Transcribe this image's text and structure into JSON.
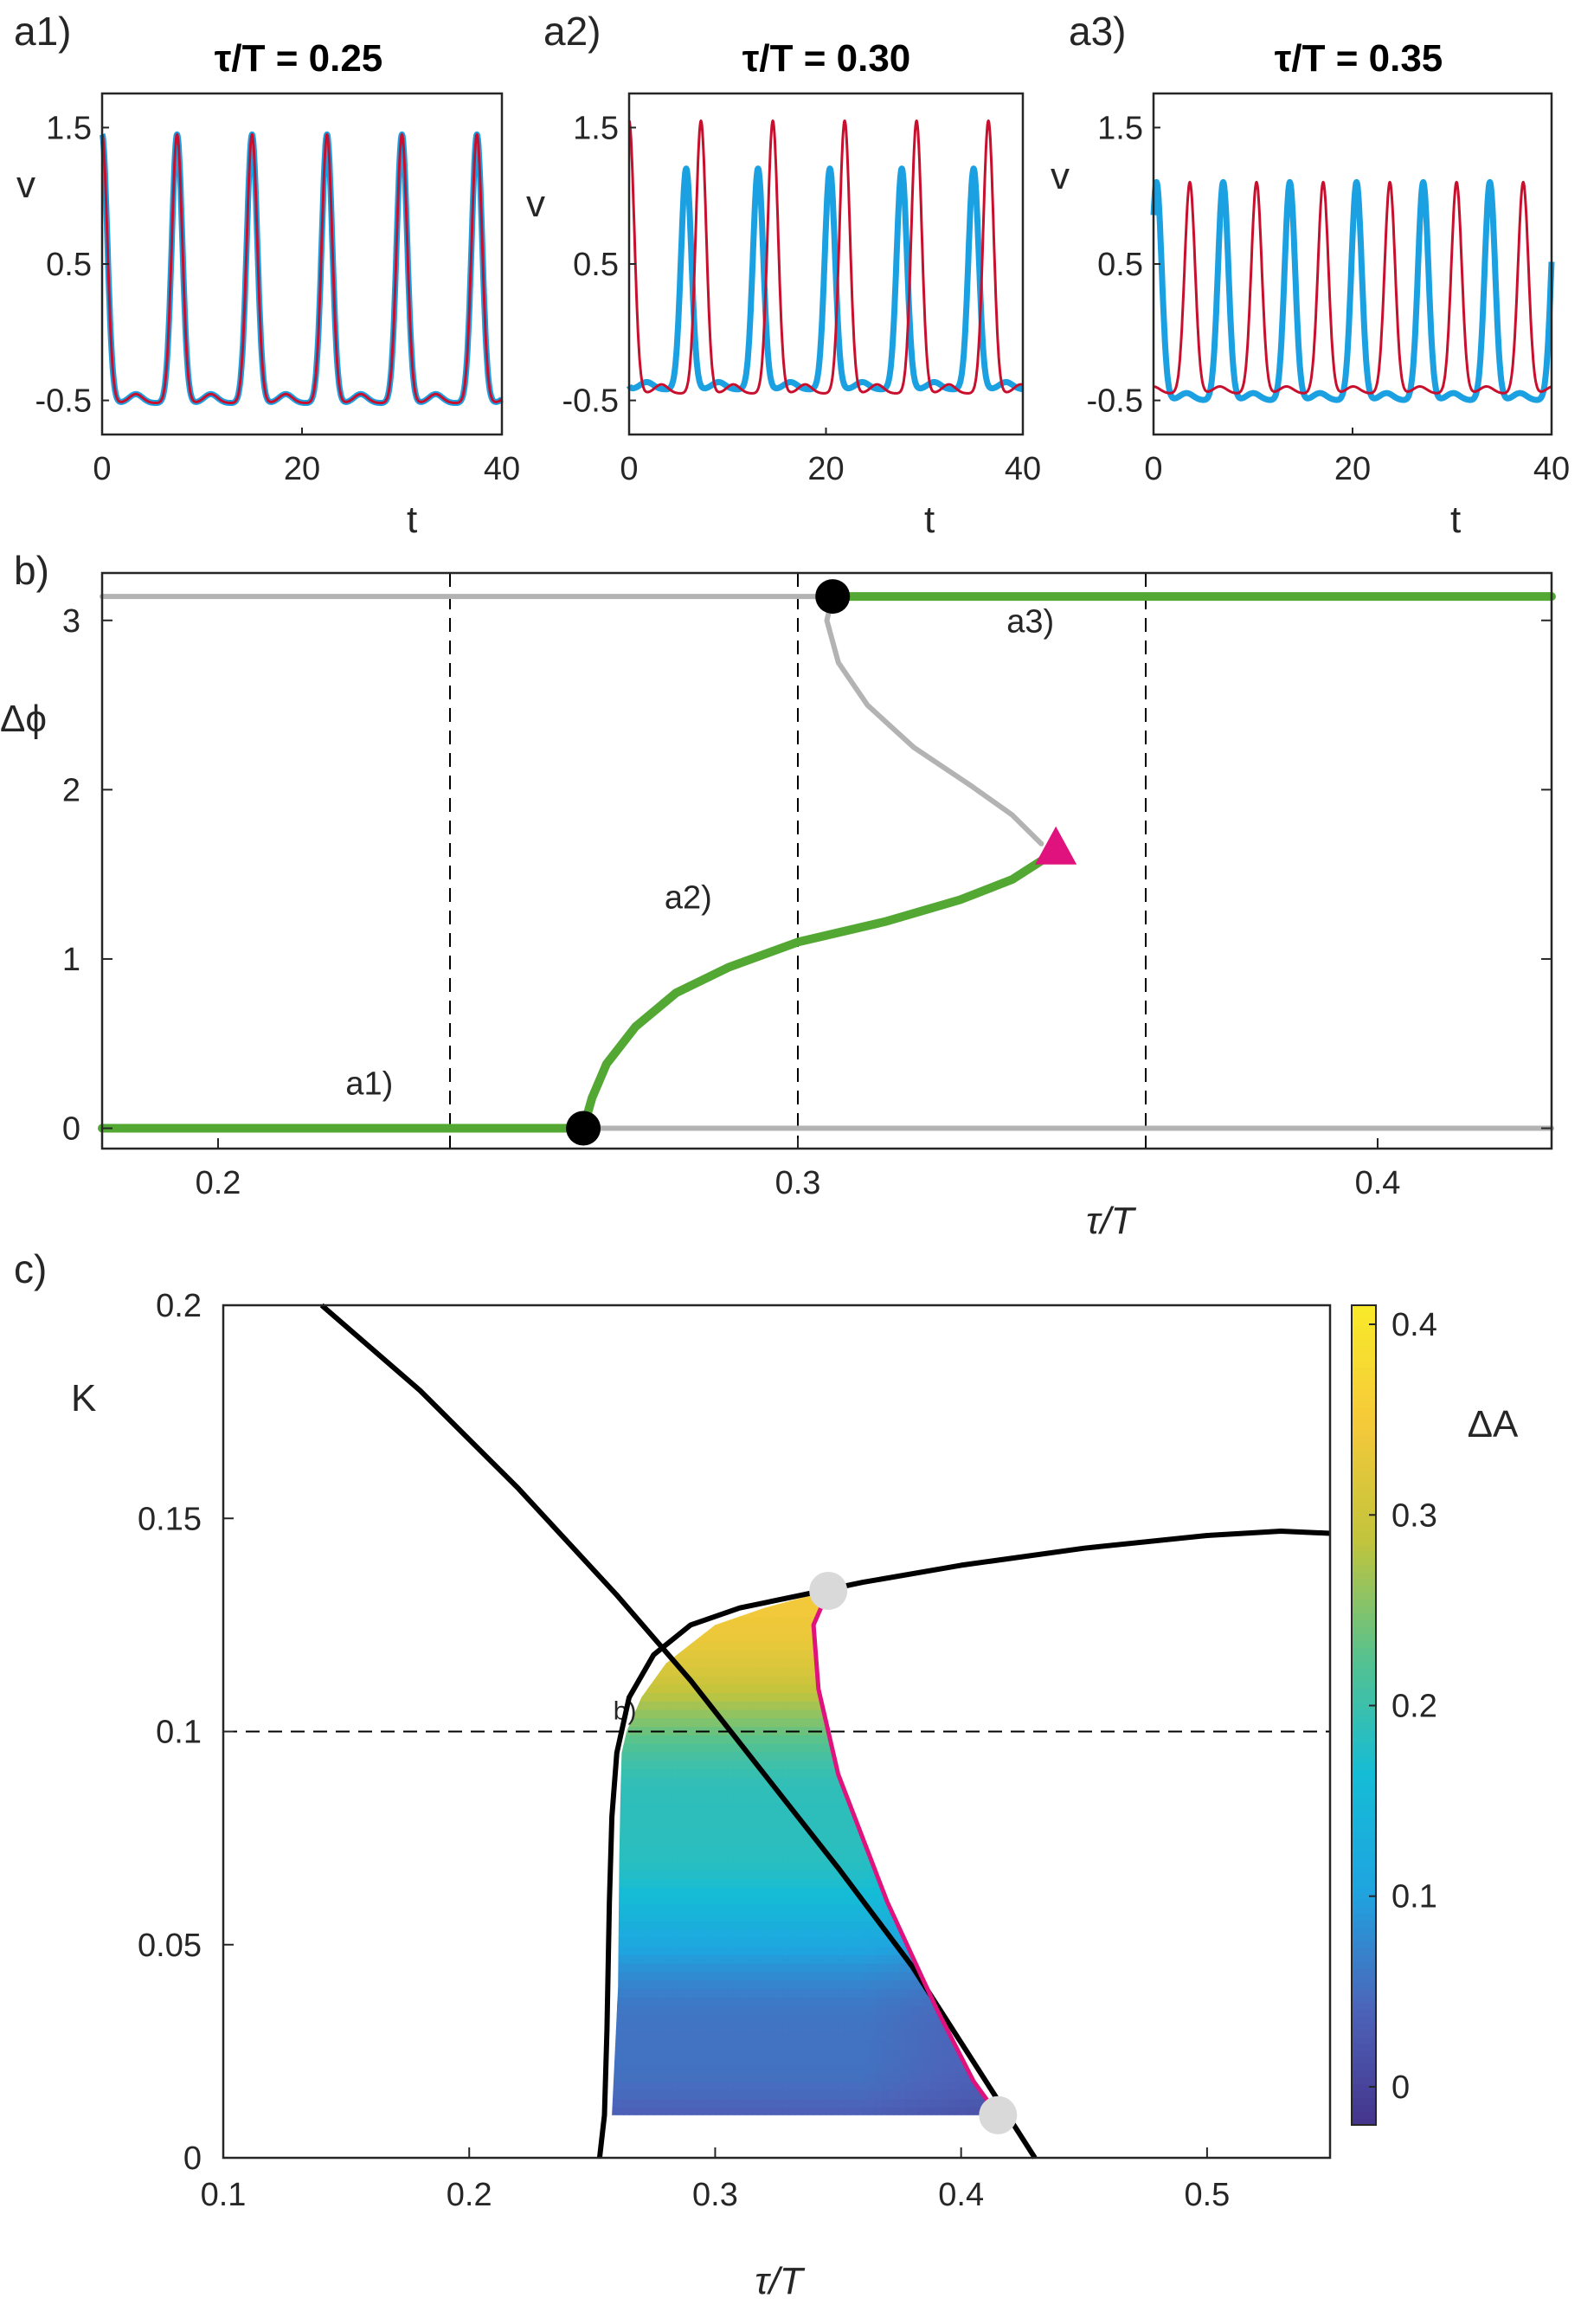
{
  "chart_data": [
    {
      "id": "a1",
      "type": "line",
      "panel_label": "a1)",
      "title": "τ/T = 0.25",
      "xlabel": "t",
      "ylabel": "v",
      "xlim": [
        0,
        40
      ],
      "ylim": [
        -0.75,
        1.75
      ],
      "xticks": [
        "0",
        "20",
        "40"
      ],
      "yticks": [
        "1.5",
        "0.5",
        "-0.5"
      ],
      "series": [
        {
          "color": "#1ba1e2",
          "period": 7.5,
          "phase": 0.0,
          "peak": 1.45,
          "trough": -0.52
        },
        {
          "color": "#c8102e",
          "period": 7.5,
          "phase": 0.0,
          "peak": 1.45,
          "trough": -0.52
        }
      ]
    },
    {
      "id": "a2",
      "type": "line",
      "panel_label": "a2)",
      "title": "τ/T = 0.30",
      "xlabel": "t",
      "ylabel": "v",
      "xlim": [
        0,
        40
      ],
      "ylim": [
        -0.75,
        1.75
      ],
      "xticks": [
        "0",
        "20",
        "40"
      ],
      "yticks": [
        "1.5",
        "0.5",
        "-0.5"
      ],
      "series": [
        {
          "color": "#1ba1e2",
          "period": 7.3,
          "phase": 5.8,
          "peak": 1.2,
          "trough": -0.42
        },
        {
          "color": "#c8102e",
          "period": 7.3,
          "phase": 0.0,
          "peak": 1.55,
          "trough": -0.45
        }
      ]
    },
    {
      "id": "a3",
      "type": "line",
      "panel_label": "a3)",
      "title": "τ/T = 0.35",
      "xlabel": "t",
      "ylabel": "v",
      "xlim": [
        0,
        40
      ],
      "ylim": [
        -0.75,
        1.75
      ],
      "xticks": [
        "0",
        "20",
        "40"
      ],
      "yticks": [
        "1.5",
        "0.5",
        "-0.5"
      ],
      "series": [
        {
          "color": "#1ba1e2",
          "period": 6.7,
          "phase": 0.3,
          "peak": 1.1,
          "trough": -0.5
        },
        {
          "color": "#c8102e",
          "period": 6.7,
          "phase": 3.65,
          "peak": 1.1,
          "trough": -0.45
        }
      ]
    },
    {
      "id": "b",
      "type": "line",
      "panel_label": "b)",
      "xlabel": "τ/T",
      "ylabel": "Δϕ",
      "xlim": [
        0.18,
        0.43
      ],
      "ylim": [
        -0.12,
        3.28
      ],
      "xticks": [
        "0.2",
        "0.3",
        "0.4"
      ],
      "xtick_values": [
        0.2,
        0.3,
        0.4
      ],
      "yticks": [
        "0",
        "1",
        "2",
        "3"
      ],
      "ytick_values": [
        0,
        1,
        2,
        3
      ],
      "vlines": [
        0.24,
        0.3,
        0.36
      ],
      "annotations": [
        {
          "text": "a1)",
          "x": 0.222,
          "y": 0.2
        },
        {
          "text": "a2)",
          "x": 0.277,
          "y": 1.3
        },
        {
          "text": "a3)",
          "x": 0.336,
          "y": 2.93
        }
      ],
      "series": [
        {
          "kind": "stable",
          "color": "#52a832",
          "x": [
            0.18,
            0.263
          ],
          "y": [
            0,
            0
          ]
        },
        {
          "kind": "unstable",
          "color": "#b3b3b3",
          "x": [
            0.263,
            0.43
          ],
          "y": [
            0,
            0
          ]
        },
        {
          "kind": "unstable",
          "color": "#b3b3b3",
          "x": [
            0.18,
            0.306
          ],
          "y": [
            3.1416,
            3.1416
          ]
        },
        {
          "kind": "stable",
          "color": "#52a832",
          "x": [
            0.306,
            0.43
          ],
          "y": [
            3.1416,
            3.1416
          ]
        },
        {
          "kind": "stable",
          "color": "#52a832",
          "x": [
            0.263,
            0.2645,
            0.267,
            0.272,
            0.279,
            0.288,
            0.3,
            0.315,
            0.328,
            0.337,
            0.342
          ],
          "y": [
            0.0,
            0.18,
            0.38,
            0.6,
            0.8,
            0.95,
            1.1,
            1.22,
            1.35,
            1.47,
            1.58
          ]
        },
        {
          "kind": "unstable",
          "color": "#b3b3b3",
          "x": [
            0.306,
            0.305,
            0.307,
            0.312,
            0.32,
            0.33,
            0.337,
            0.342
          ],
          "y": [
            3.1416,
            3.0,
            2.75,
            2.5,
            2.25,
            2.02,
            1.85,
            1.68
          ]
        }
      ],
      "markers": [
        {
          "shape": "circle",
          "color": "#000000",
          "x": 0.263,
          "y": 0
        },
        {
          "shape": "circle",
          "color": "#000000",
          "x": 0.306,
          "y": 3.1416
        },
        {
          "shape": "triangle",
          "color": "#e0137e",
          "x": 0.3445,
          "y": 1.65
        }
      ]
    },
    {
      "id": "c",
      "type": "heatmap",
      "panel_label": "c)",
      "xlabel": "τ/T",
      "ylabel": "K",
      "xlim": [
        0.1,
        0.55
      ],
      "ylim": [
        0,
        0.2
      ],
      "xticks": [
        "0.1",
        "0.2",
        "0.3",
        "0.4",
        "0.5"
      ],
      "xtick_values": [
        0.1,
        0.2,
        0.3,
        0.4,
        0.5
      ],
      "yticks": [
        "0",
        "0.05",
        "0.1",
        "0.15",
        "0.2"
      ],
      "ytick_values": [
        0,
        0.05,
        0.1,
        0.15,
        0.2
      ],
      "hline": 0.1,
      "hline_label": "b)",
      "colorbar": {
        "label": "ΔA",
        "range": [
          -0.02,
          0.41
        ],
        "ticks": [
          "0",
          "0.1",
          "0.2",
          "0.3",
          "0.4"
        ],
        "tick_values": [
          0,
          0.1,
          0.2,
          0.3,
          0.4
        ],
        "colors": [
          "#45348c",
          "#4c64b9",
          "#1fa4e0",
          "#15bcd6",
          "#57c28d",
          "#c2c43c",
          "#f5c93a",
          "#f8ea2a"
        ]
      },
      "curves": [
        {
          "color": "#000000",
          "x": [
            0.253,
            0.255,
            0.256,
            0.257,
            0.258,
            0.26,
            0.265,
            0.275,
            0.29,
            0.31,
            0.335,
            0.36,
            0.4,
            0.45,
            0.5,
            0.53,
            0.55
          ],
          "y": [
            0.0,
            0.01,
            0.03,
            0.06,
            0.08,
            0.095,
            0.108,
            0.118,
            0.125,
            0.129,
            0.132,
            0.135,
            0.139,
            0.143,
            0.146,
            0.147,
            0.1465
          ]
        },
        {
          "color": "#000000",
          "x": [
            0.14,
            0.18,
            0.22,
            0.26,
            0.29,
            0.32,
            0.35,
            0.38,
            0.41,
            0.43
          ],
          "y": [
            0.2,
            0.18,
            0.157,
            0.132,
            0.112,
            0.09,
            0.068,
            0.045,
            0.018,
            0.0
          ]
        },
        {
          "color": "#e0137e",
          "x": [
            0.346,
            0.34,
            0.342,
            0.35,
            0.37,
            0.39,
            0.405,
            0.415
          ],
          "y": [
            0.133,
            0.125,
            0.11,
            0.09,
            0.06,
            0.035,
            0.018,
            0.01
          ]
        }
      ],
      "region_left_x": [
        0.258,
        0.2605,
        0.261,
        0.2615,
        0.262,
        0.264,
        0.27,
        0.28,
        0.3,
        0.32,
        0.333
      ],
      "region_left_y": [
        0.01,
        0.04,
        0.07,
        0.085,
        0.095,
        0.1,
        0.108,
        0.116,
        0.125,
        0.129,
        0.131
      ],
      "markers": [
        {
          "shape": "circle",
          "color": "#d9d9d9",
          "x": 0.346,
          "y": 0.133
        },
        {
          "shape": "circle",
          "color": "#d9d9d9",
          "x": 0.415,
          "y": 0.01
        }
      ]
    }
  ]
}
